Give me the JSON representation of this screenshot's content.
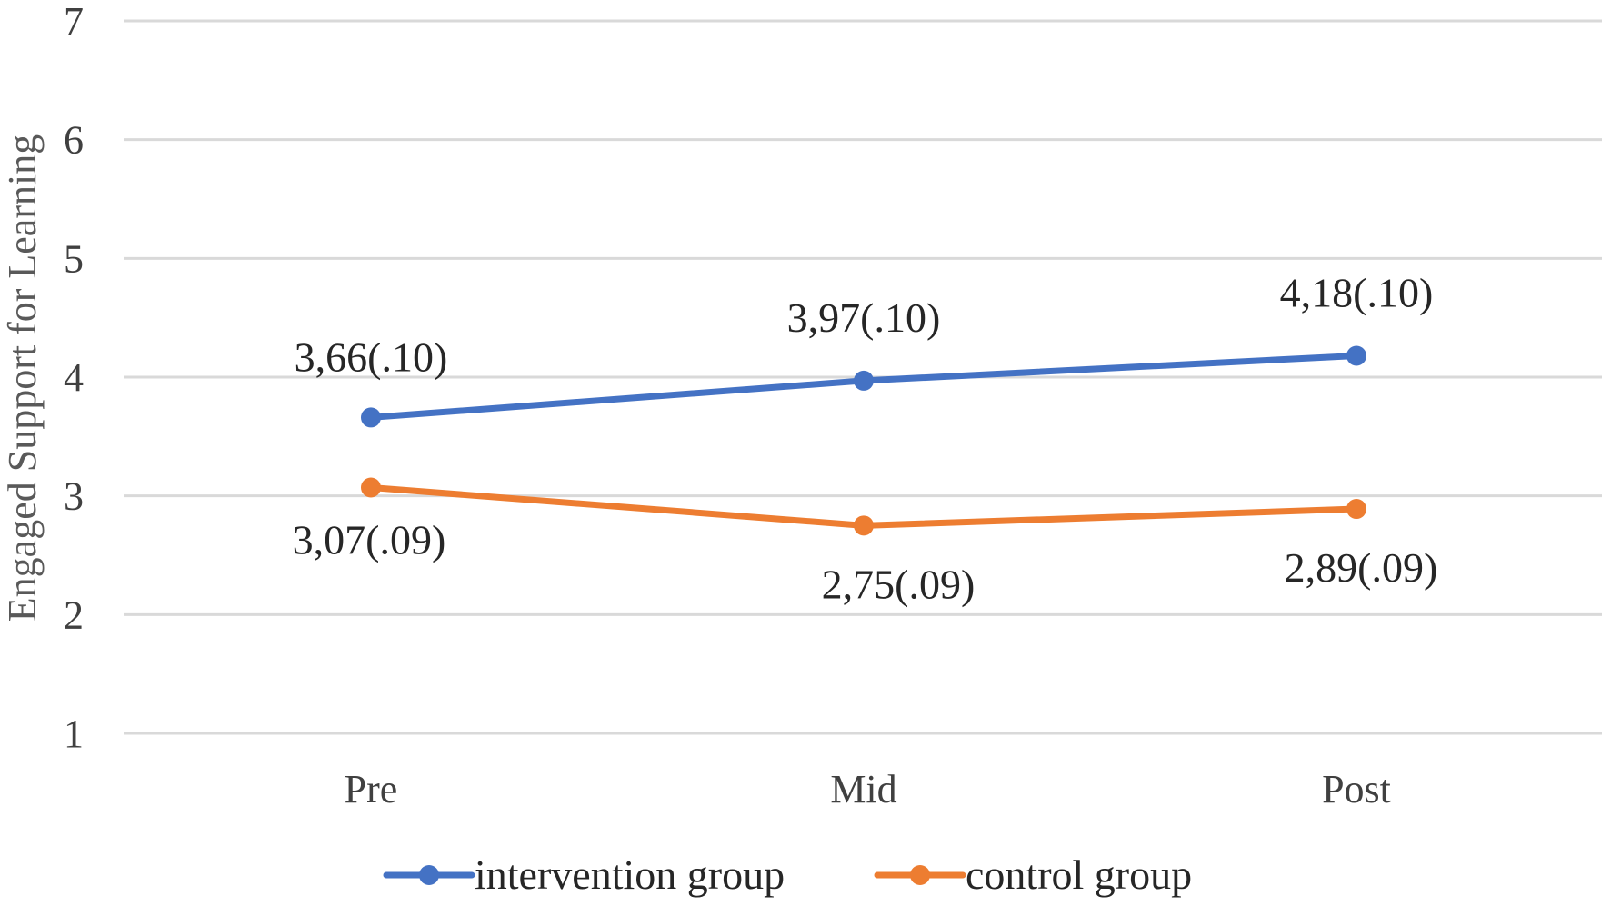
{
  "chart_data": {
    "type": "line",
    "title": "",
    "xlabel": "",
    "ylabel": "Engaged Support for Learning",
    "categories": [
      "Pre",
      "Mid",
      "Post"
    ],
    "ylim": [
      1,
      7
    ],
    "yticks": [
      1,
      2,
      3,
      4,
      5,
      6,
      7
    ],
    "grid": true,
    "legend_position": "bottom",
    "series": [
      {
        "name": "intervention group",
        "color": "#4472c4",
        "values": [
          3.66,
          3.97,
          4.18
        ],
        "labels": [
          "3,66(.10)",
          "3,97(.10)",
          "4,18(.10)"
        ],
        "label_position": "above"
      },
      {
        "name": "control group",
        "color": "#ed7d31",
        "values": [
          3.07,
          2.75,
          2.89
        ],
        "labels": [
          "3,07(.09)",
          "2,75(.09)",
          "2,89(.09)"
        ],
        "label_position": "below"
      }
    ]
  }
}
